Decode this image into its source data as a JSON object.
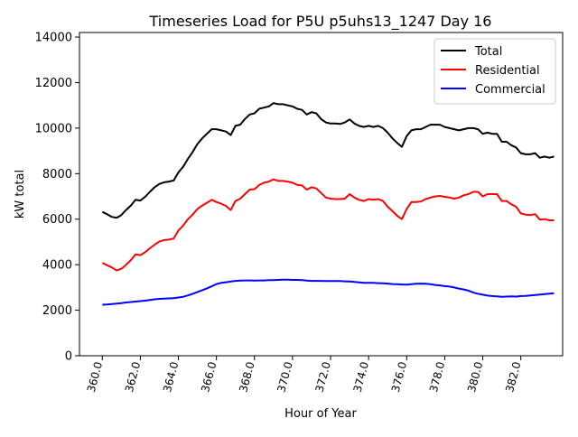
{
  "chart_data": {
    "type": "line",
    "title": "Timeseries Load for P5U p5uhs13_1247  Day 16",
    "xlabel": "Hour of Year",
    "ylabel": "kW total",
    "xlim": [
      358.8,
      384.2
    ],
    "ylim": [
      0,
      14200
    ],
    "x_ticks": [
      360,
      362,
      364,
      366,
      368,
      370,
      372,
      374,
      376,
      378,
      380,
      382
    ],
    "x_tick_labels": [
      "360.0",
      "362.0",
      "364.0",
      "366.0",
      "368.0",
      "370.0",
      "372.0",
      "374.0",
      "376.0",
      "378.0",
      "380.0",
      "382.0"
    ],
    "y_ticks": [
      0,
      2000,
      4000,
      6000,
      8000,
      10000,
      12000,
      14000
    ],
    "y_tick_labels": [
      "0",
      "2000",
      "4000",
      "6000",
      "8000",
      "10000",
      "12000",
      "14000"
    ],
    "legend_position": "top-right",
    "x": [
      360.0,
      360.25,
      360.5,
      360.75,
      361.0,
      361.25,
      361.5,
      361.75,
      362.0,
      362.25,
      362.5,
      362.75,
      363.0,
      363.25,
      363.5,
      363.75,
      364.0,
      364.25,
      364.5,
      364.75,
      365.0,
      365.25,
      365.5,
      365.75,
      366.0,
      366.25,
      366.5,
      366.75,
      367.0,
      367.25,
      367.5,
      367.75,
      368.0,
      368.25,
      368.5,
      368.75,
      369.0,
      369.25,
      369.5,
      369.75,
      370.0,
      370.25,
      370.5,
      370.75,
      371.0,
      371.25,
      371.5,
      371.75,
      372.0,
      372.25,
      372.5,
      372.75,
      373.0,
      373.25,
      373.5,
      373.75,
      374.0,
      374.25,
      374.5,
      374.75,
      375.0,
      375.25,
      375.5,
      375.75,
      376.0,
      376.25,
      376.5,
      376.75,
      377.0,
      377.25,
      377.5,
      377.75,
      378.0,
      378.25,
      378.5,
      378.75,
      379.0,
      379.25,
      379.5,
      379.75,
      380.0,
      380.25,
      380.5,
      380.75,
      381.0,
      381.25,
      381.5,
      381.75,
      382.0,
      382.25,
      382.5,
      382.75,
      383.0,
      383.25,
      383.5,
      383.75
    ],
    "series": [
      {
        "name": "Total",
        "color": "#000000",
        "values": [
          6320,
          6220,
          6100,
          6060,
          6180,
          6400,
          6600,
          6850,
          6820,
          6980,
          7200,
          7400,
          7550,
          7620,
          7650,
          7700,
          8050,
          8300,
          8650,
          8950,
          9300,
          9550,
          9750,
          9950,
          9950,
          9900,
          9850,
          9700,
          10100,
          10150,
          10400,
          10600,
          10650,
          10850,
          10900,
          10950,
          11100,
          11050,
          11050,
          11000,
          10950,
          10850,
          10800,
          10600,
          10700,
          10650,
          10400,
          10250,
          10200,
          10200,
          10180,
          10250,
          10380,
          10200,
          10100,
          10050,
          10100,
          10050,
          10100,
          10000,
          9800,
          9550,
          9350,
          9180,
          9650,
          9900,
          9950,
          9950,
          10050,
          10150,
          10150,
          10150,
          10050,
          10000,
          9950,
          9900,
          9950,
          10000,
          10000,
          9950,
          9750,
          9800,
          9750,
          9750,
          9400,
          9400,
          9250,
          9150,
          8900,
          8850,
          8850,
          8900,
          8700,
          8750,
          8700,
          8750
        ]
      },
      {
        "name": "Residential",
        "color": "#ff0000",
        "values": [
          4080,
          3980,
          3880,
          3750,
          3820,
          4000,
          4200,
          4450,
          4420,
          4550,
          4720,
          4880,
          5020,
          5080,
          5100,
          5150,
          5500,
          5720,
          6000,
          6200,
          6450,
          6600,
          6720,
          6850,
          6750,
          6680,
          6580,
          6400,
          6800,
          6900,
          7100,
          7300,
          7320,
          7500,
          7600,
          7650,
          7750,
          7680,
          7680,
          7650,
          7600,
          7500,
          7480,
          7300,
          7400,
          7350,
          7150,
          6950,
          6900,
          6880,
          6880,
          6900,
          7100,
          6950,
          6850,
          6800,
          6880,
          6850,
          6880,
          6800,
          6550,
          6350,
          6150,
          6000,
          6450,
          6750,
          6750,
          6780,
          6880,
          6950,
          7000,
          7020,
          6980,
          6950,
          6900,
          6950,
          7050,
          7100,
          7200,
          7200,
          7000,
          7100,
          7100,
          7100,
          6800,
          6800,
          6650,
          6550,
          6250,
          6200,
          6180,
          6220,
          5980,
          6000,
          5950,
          5950
        ]
      },
      {
        "name": "Commercial",
        "color": "#0000ff",
        "values": [
          2240,
          2250,
          2270,
          2290,
          2310,
          2340,
          2360,
          2380,
          2400,
          2420,
          2450,
          2480,
          2500,
          2510,
          2520,
          2530,
          2560,
          2590,
          2650,
          2720,
          2800,
          2880,
          2960,
          3050,
          3150,
          3200,
          3230,
          3260,
          3290,
          3300,
          3310,
          3310,
          3300,
          3310,
          3310,
          3320,
          3320,
          3330,
          3340,
          3340,
          3330,
          3330,
          3320,
          3300,
          3290,
          3290,
          3290,
          3280,
          3280,
          3280,
          3280,
          3270,
          3260,
          3240,
          3220,
          3200,
          3200,
          3200,
          3190,
          3180,
          3170,
          3150,
          3140,
          3130,
          3120,
          3140,
          3160,
          3170,
          3160,
          3140,
          3110,
          3090,
          3060,
          3040,
          3000,
          2950,
          2910,
          2860,
          2780,
          2720,
          2680,
          2640,
          2620,
          2610,
          2590,
          2600,
          2610,
          2600,
          2620,
          2630,
          2650,
          2670,
          2690,
          2710,
          2730,
          2750
        ]
      }
    ]
  }
}
